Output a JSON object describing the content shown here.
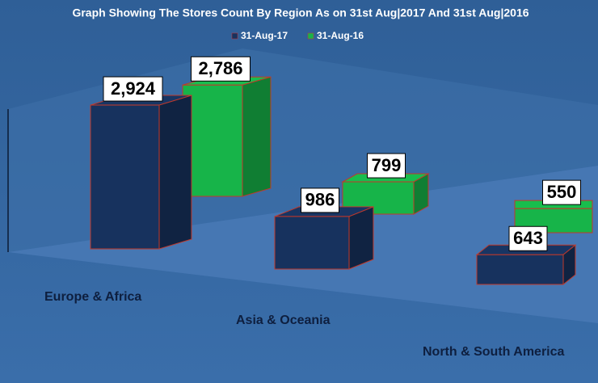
{
  "chart_data": {
    "type": "bar3d",
    "title": "Graph Showing The Stores Count By Region As on 31st Aug|2017 And 31st Aug|2016",
    "categories": [
      "Europe & Africa",
      "Asia & Oceania",
      "North & South America"
    ],
    "series": [
      {
        "name": "31-Aug-17",
        "color": "#17325e",
        "values": [
          2924,
          986,
          643
        ],
        "value_labels": [
          "2,924",
          "986",
          "643"
        ]
      },
      {
        "name": "31-Aug-16",
        "color": "#17b449",
        "values": [
          2786,
          799,
          550
        ],
        "value_labels": [
          "2,786",
          "799",
          "550"
        ]
      }
    ],
    "ylim": [
      0,
      3500
    ]
  }
}
